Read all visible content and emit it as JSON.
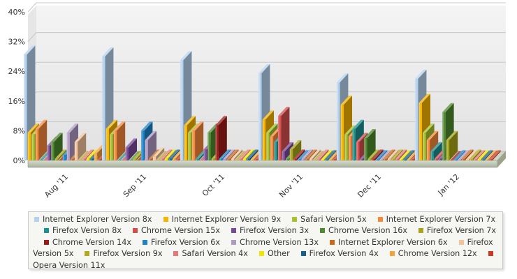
{
  "chart_data": {
    "type": "bar",
    "title": "",
    "xlabel": "",
    "ylabel": "",
    "ylim": [
      0,
      40
    ],
    "ytick_labels": [
      "0%",
      "8%",
      "16%",
      "24%",
      "32%",
      "40%"
    ],
    "y_unit": "%",
    "grid": "horizontal",
    "style": "3d-column",
    "legend_position": "bottom",
    "categories": [
      "Aug '11",
      "Sep '11",
      "Oct '11",
      "Nov '11",
      "Dec '11",
      "Jan '12"
    ],
    "series": [
      {
        "name": "Internet Explorer Version 8x",
        "color": "#b4d2ee",
        "values": [
          28.5,
          28,
          27,
          23.5,
          21,
          22
        ]
      },
      {
        "name": "Internet Explorer Version 9x",
        "color": "#f5b400",
        "values": [
          7.5,
          8.5,
          9.5,
          11,
          15,
          15.5
        ]
      },
      {
        "name": "Safari Version 5x",
        "color": "#a6c22e",
        "values": [
          7,
          7,
          7.5,
          7.5,
          7,
          7.5
        ]
      },
      {
        "name": "Internet Explorer Version 7x",
        "color": "#f5883a",
        "values": [
          8.5,
          8,
          8,
          6.5,
          6.5,
          5.5
        ]
      },
      {
        "name": "Firefox Version 8x",
        "color": "#1c8f8f",
        "values": [
          0,
          0,
          0.5,
          5,
          8.5,
          2.5
        ]
      },
      {
        "name": "Chrome Version 15x",
        "color": "#d64d4d",
        "values": [
          0,
          0,
          0,
          12,
          5,
          0.5
        ]
      },
      {
        "name": "Firefox Version 3x",
        "color": "#7a4a98",
        "values": [
          4,
          3.5,
          3,
          2.5,
          0.5,
          0.5
        ]
      },
      {
        "name": "Chrome Version 16x",
        "color": "#4f8a2e",
        "values": [
          5,
          0,
          7.5,
          0.5,
          6,
          13
        ]
      },
      {
        "name": "Firefox Version 7x",
        "color": "#a8a418",
        "values": [
          0.5,
          0.5,
          0.5,
          3,
          0.5,
          5.5
        ]
      },
      {
        "name": "Chrome Version 14x",
        "color": "#9e1a1a",
        "values": [
          0,
          0,
          9.5,
          0.5,
          0.5,
          0
        ]
      },
      {
        "name": "Firefox Version 6x",
        "color": "#1c84c7",
        "values": [
          1.5,
          8,
          0.5,
          0.3,
          0.3,
          0.3
        ]
      },
      {
        "name": "Chrome Version 13x",
        "color": "#b09ac4",
        "values": [
          7.5,
          5.5,
          0.5,
          0.5,
          0.3,
          0.3
        ]
      },
      {
        "name": "Internet Explorer Version 6x",
        "color": "#cc6a1a",
        "values": [
          0.5,
          0.5,
          0.5,
          0.5,
          0.5,
          0.5
        ]
      },
      {
        "name": "Firefox Version 5x",
        "color": "#f3c39a",
        "values": [
          5,
          1,
          0.5,
          0.5,
          0.5,
          0.3
        ]
      },
      {
        "name": "Firefox Version 9x",
        "color": "#b5a81f",
        "values": [
          0,
          0,
          0,
          0,
          0.5,
          0.5
        ]
      },
      {
        "name": "Safari Version 4x",
        "color": "#e87878",
        "values": [
          0.5,
          0.5,
          0.5,
          0.5,
          0.5,
          0.3
        ]
      },
      {
        "name": "Other",
        "color": "#f2e400",
        "values": [
          0.5,
          0.5,
          0.5,
          0.3,
          0.3,
          0.3
        ]
      },
      {
        "name": "Firefox Version 4x",
        "color": "#11628f",
        "values": [
          0.5,
          0.5,
          0.5,
          0.3,
          0.3,
          0.3
        ]
      },
      {
        "name": "Chrome Version 12x",
        "color": "#f3a13a",
        "values": [
          2,
          0.5,
          0.3,
          0.3,
          0.3,
          0.3
        ]
      },
      {
        "name": "Opera Version 11x",
        "color": "#cc3a24",
        "values": [
          0.3,
          0.3,
          0.3,
          0.3,
          0.3,
          0.3
        ]
      }
    ]
  }
}
